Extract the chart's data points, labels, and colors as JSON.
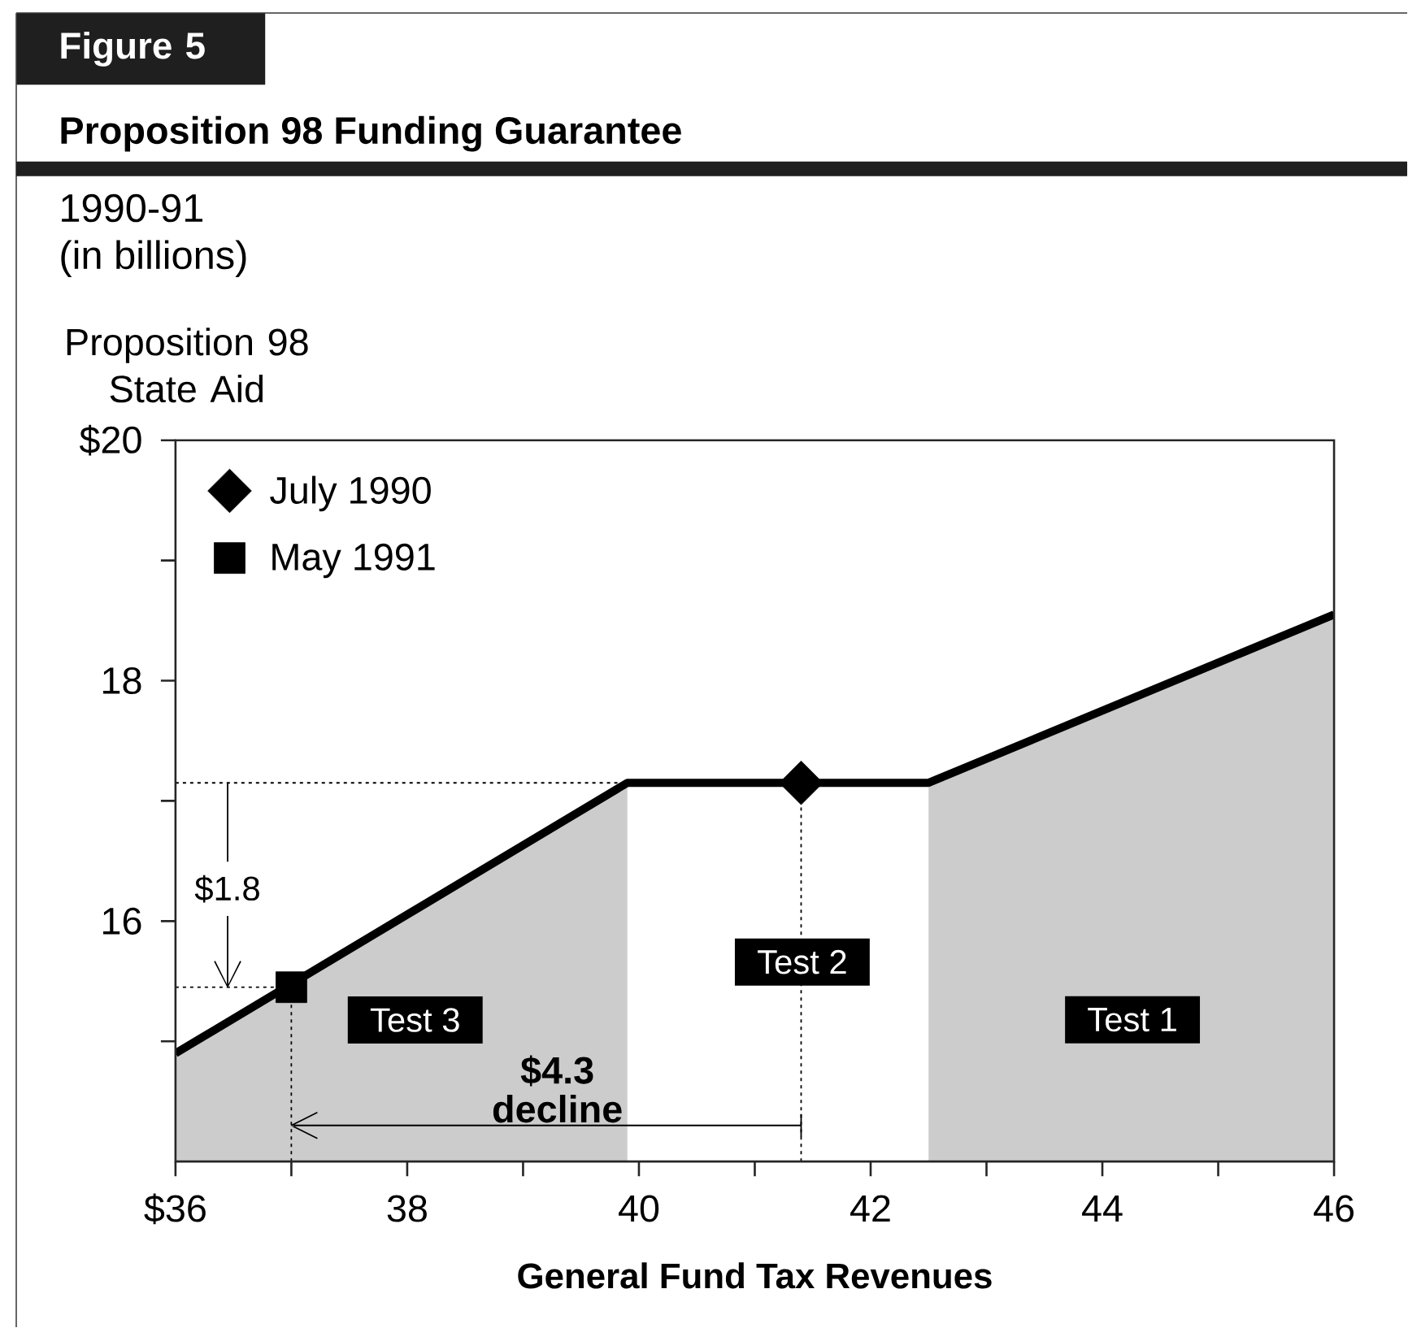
{
  "chart_data": {
    "type": "line",
    "title": "Proposition 98 Funding Guarantee",
    "subtitle": "1990-91",
    "xlabel": "General Fund Tax Revenues",
    "ylabel": "Proposition 98 State Aid",
    "annotations": [
      "Figure 5",
      "(in billions)",
      {
        "text": "$1.8",
        "x": 36.45,
        "y": 15.45
      },
      {
        "text": "$4.3 decline",
        "x": 37,
        "y": 14.3
      },
      "Test 3",
      "Test 2",
      "Test 1"
    ],
    "xlim": [
      36,
      46
    ],
    "xticks": [
      {
        "value": 36,
        "label": "$36"
      },
      {
        "value": 37,
        "label": null
      },
      38,
      {
        "value": 39,
        "label": null
      },
      40,
      {
        "value": 41,
        "label": null
      },
      42,
      {
        "value": 43,
        "label": null
      },
      44,
      {
        "value": 45,
        "label": null
      },
      46
    ],
    "ylim": [
      14,
      20
    ],
    "yticks": [
      {
        "value": 15,
        "label": null
      },
      16,
      {
        "value": 17,
        "label": null
      },
      18,
      {
        "value": 19,
        "label": null
      },
      {
        "value": 20,
        "label": "$20"
      }
    ],
    "series": [
      {
        "type": "area",
        "color": "#cccccc",
        "x": [
          36,
          39.9
        ],
        "values": [
          14.9,
          17.15
        ]
      },
      {
        "type": "area",
        "color": "#cccccc",
        "x": [
          42.5,
          46
        ],
        "values": [
          17.15,
          18.55
        ]
      },
      {
        "color": "#000000",
        "x": [
          36,
          39.9,
          42.5,
          46
        ],
        "values": [
          14.9,
          17.15,
          17.15,
          18.55
        ]
      },
      {
        "type": "scatter",
        "name": "July 1990",
        "color": "#000000",
        "marker": "diamond",
        "x": [
          41.4
        ],
        "values": [
          17.15
        ]
      },
      {
        "type": "scatter",
        "name": "May 1991",
        "color": "#000000",
        "marker": "square",
        "x": [
          37
        ],
        "values": [
          15.45
        ]
      }
    ],
    "ref_lines": [
      {
        "axis": "y",
        "value": 17.15,
        "line_style": "dotted"
      },
      {
        "axis": "y",
        "value": 15.45,
        "line_style": "dotted"
      },
      {
        "axis": "x",
        "value": 37,
        "line_style": "dotted"
      },
      {
        "axis": "x",
        "value": 41.4,
        "line_style": "dotted"
      }
    ],
    "legend": "top left"
  }
}
